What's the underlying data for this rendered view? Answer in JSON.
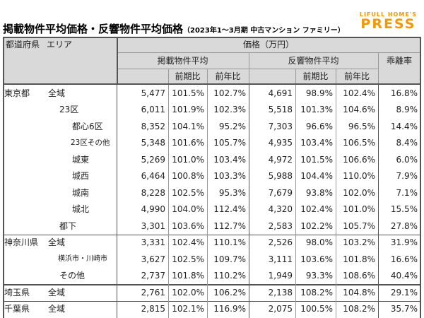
{
  "header": {
    "title": "掲載物件平均価格・反響物件平均価格",
    "subtitle": "（2023年1～3月期 中古マンション ファミリー）",
    "logo_top": "LIFULL HOME'S",
    "logo_main": "PRESS"
  },
  "table": {
    "head": {
      "prefecture": "都道府県",
      "area": "エリア",
      "price": "価格（万円）",
      "listed": "掲載物件平均",
      "inquiry": "反響物件平均",
      "gap": "乖離率",
      "sub": [
        "前期比",
        "前年比",
        "前期比",
        "前年比"
      ]
    },
    "rows": [
      [
        "東京都",
        "全域",
        "5,477",
        "101.5%",
        "102.7%",
        "4,691",
        "98.9%",
        "102.4%",
        "16.8%"
      ],
      [
        "",
        "23区",
        "6,011",
        "101.9%",
        "102.3%",
        "5,518",
        "101.3%",
        "104.6%",
        "8.9%"
      ],
      [
        "",
        "都心6区",
        "8,352",
        "104.1%",
        "95.2%",
        "7,303",
        "96.6%",
        "96.5%",
        "14.4%"
      ],
      [
        "",
        "23区その他",
        "5,348",
        "101.6%",
        "105.7%",
        "4,935",
        "103.4%",
        "106.5%",
        "8.4%"
      ],
      [
        "",
        "城東",
        "5,269",
        "101.0%",
        "103.4%",
        "4,972",
        "101.5%",
        "106.6%",
        "6.0%"
      ],
      [
        "",
        "城西",
        "6,464",
        "100.8%",
        "103.3%",
        "5,988",
        "104.4%",
        "110.0%",
        "7.9%"
      ],
      [
        "",
        "城南",
        "8,228",
        "102.5%",
        "95.3%",
        "7,679",
        "93.8%",
        "102.0%",
        "7.1%"
      ],
      [
        "",
        "城北",
        "4,990",
        "104.0%",
        "112.4%",
        "4,320",
        "102.4%",
        "101.0%",
        "15.5%"
      ],
      [
        "",
        "都下",
        "3,301",
        "103.6%",
        "112.7%",
        "2,583",
        "102.2%",
        "105.7%",
        "27.8%"
      ],
      [
        "神奈川県",
        "全域",
        "3,331",
        "102.4%",
        "110.1%",
        "2,526",
        "98.0%",
        "103.2%",
        "31.9%"
      ],
      [
        "",
        "横浜市・川崎市",
        "3,627",
        "102.5%",
        "109.7%",
        "3,111",
        "103.6%",
        "101.8%",
        "16.6%"
      ],
      [
        "",
        "その他",
        "2,737",
        "101.8%",
        "110.2%",
        "1,949",
        "93.3%",
        "108.6%",
        "40.4%"
      ],
      [
        "埼玉県",
        "全域",
        "2,761",
        "102.0%",
        "106.2%",
        "2,138",
        "108.2%",
        "104.8%",
        "29.1%"
      ],
      [
        "千葉県",
        "全域",
        "2,815",
        "102.1%",
        "116.9%",
        "2,075",
        "100.5%",
        "108.2%",
        "35.7%"
      ]
    ]
  }
}
